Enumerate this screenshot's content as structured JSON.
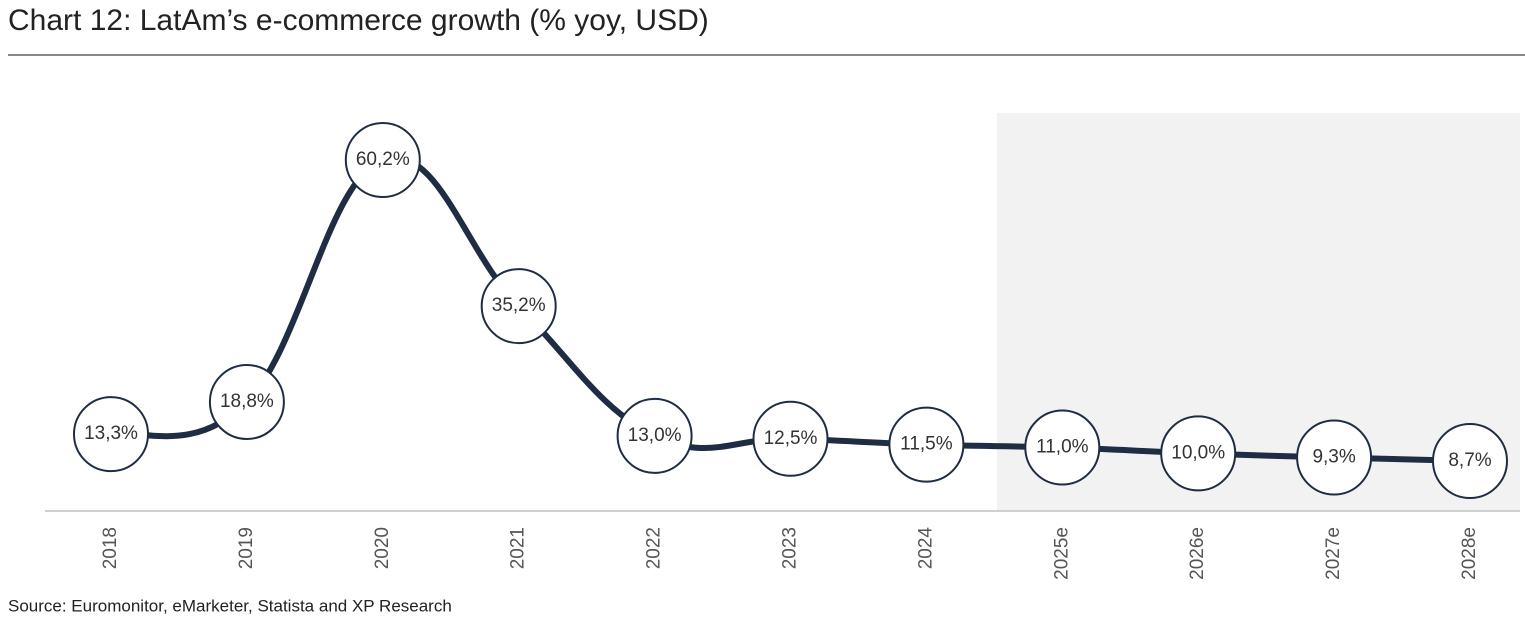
{
  "chart_data": {
    "type": "line",
    "title": "Chart 12: LatAm’s e-commerce growth (% yoy, USD)",
    "source": "Source: Euromonitor, eMarketer, Statista and XP Research",
    "categories": [
      "2018",
      "2019",
      "2020",
      "2021",
      "2022",
      "2023",
      "2024",
      "2025e",
      "2026e",
      "2027e",
      "2028e"
    ],
    "values": [
      13.3,
      18.8,
      60.2,
      35.2,
      13.0,
      12.5,
      11.5,
      11.0,
      10.0,
      9.3,
      8.7
    ],
    "value_labels": [
      "13,3%",
      "18,8%",
      "60,2%",
      "35,2%",
      "13,0%",
      "12,5%",
      "11,5%",
      "11,0%",
      "10,0%",
      "9,3%",
      "8,7%"
    ],
    "color": "#1f2d44"
  }
}
